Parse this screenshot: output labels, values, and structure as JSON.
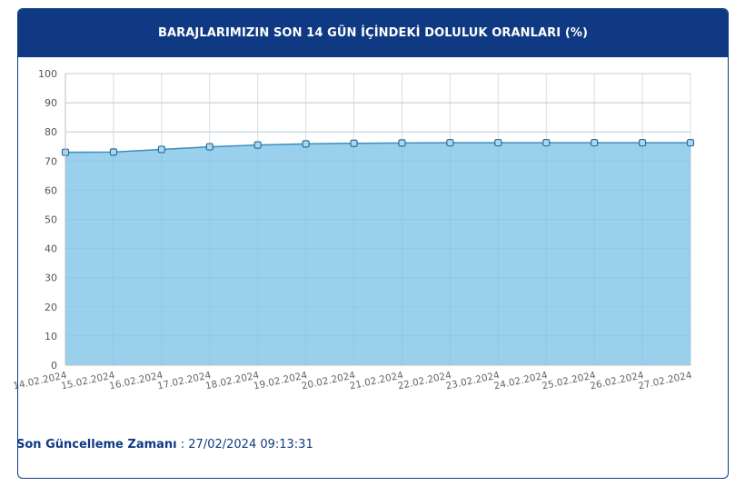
{
  "header": {
    "title": "BARAJLARIMIZIN SON 14 GÜN İÇİNDEKİ DOLULUK ORANLARI (%)"
  },
  "footer": {
    "label": "Son Güncelleme Zamanı",
    "separator": " : ",
    "value": "27/02/2024 09:13:31"
  },
  "colors": {
    "header_bg": "#0f3a83",
    "area_fill": "#9ad0ec",
    "line": "#3b8ec0",
    "grid": "#dcdcdc"
  },
  "chart_data": {
    "type": "area",
    "title": "BARAJLARIMIZIN SON 14 GÜN İÇİNDEKİ DOLULUK ORANLARI (%)",
    "xlabel": "",
    "ylabel": "",
    "ylim": [
      0,
      100
    ],
    "yticks": [
      0,
      10,
      20,
      30,
      40,
      50,
      60,
      70,
      80,
      90,
      100
    ],
    "grid": true,
    "categories": [
      "14.02.2024",
      "15.02.2024",
      "16.02.2024",
      "17.02.2024",
      "18.02.2024",
      "19.02.2024",
      "20.02.2024",
      "21.02.2024",
      "22.02.2024",
      "23.02.2024",
      "24.02.2024",
      "25.02.2024",
      "26.02.2024",
      "27.02.2024"
    ],
    "values": [
      73.0,
      73.1,
      74.0,
      74.9,
      75.5,
      75.9,
      76.1,
      76.2,
      76.3,
      76.3,
      76.3,
      76.3,
      76.3,
      76.3
    ]
  }
}
